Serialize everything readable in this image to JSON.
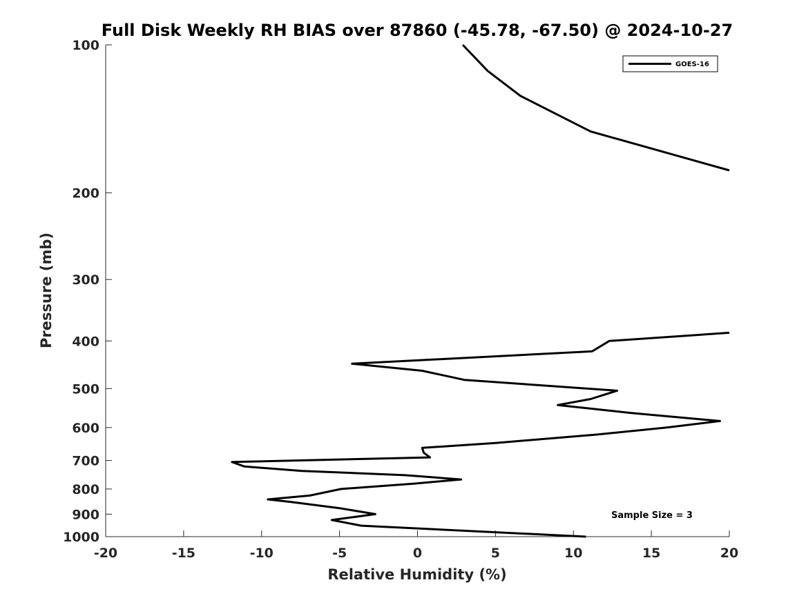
{
  "chart_data": {
    "type": "line",
    "title": "Full Disk Weekly RH BIAS over 87860 (-45.78, -67.50) @ 2024-10-27",
    "xlabel": "Relative Humidity (%)",
    "ylabel": "Pressure (mb)",
    "xlim": [
      -20,
      20
    ],
    "ylim": [
      100,
      1000
    ],
    "y_scale": "log",
    "y_reversed": true,
    "grid": false,
    "legend_position": "top-right",
    "x_ticks": [
      -20,
      -15,
      -10,
      -5,
      0,
      5,
      10,
      15,
      20
    ],
    "x_tick_labels": [
      "-20",
      "-15",
      "-10",
      "-5",
      "0",
      "5",
      "10",
      "15",
      "20"
    ],
    "y_ticks": [
      100,
      200,
      300,
      400,
      500,
      600,
      700,
      800,
      900,
      1000
    ],
    "y_tick_labels": [
      "100",
      "200",
      "300",
      "400",
      "500",
      "600",
      "700",
      "800",
      "900",
      "1000"
    ],
    "annotation": "Sample Size = 3",
    "series": [
      {
        "name": "GOES-16",
        "color": "#000000",
        "points": [
          [
            10.8,
            1000
          ],
          [
            -3.6,
            950
          ],
          [
            -5.5,
            925
          ],
          [
            -2.7,
            900
          ],
          [
            -5.0,
            875
          ],
          [
            -8.1,
            850
          ],
          [
            -9.6,
            840
          ],
          [
            -6.9,
            825
          ],
          [
            -4.9,
            800
          ],
          [
            -0.2,
            780
          ],
          [
            2.8,
            765
          ],
          [
            -0.8,
            750
          ],
          [
            -7.4,
            735
          ],
          [
            -11.1,
            720
          ],
          [
            -11.9,
            705
          ],
          [
            0.8,
            690
          ],
          [
            0.4,
            675
          ],
          [
            0.3,
            660
          ],
          [
            5.0,
            645
          ],
          [
            11.5,
            620
          ],
          [
            16.0,
            600
          ],
          [
            19.4,
            582
          ],
          [
            13.6,
            560
          ],
          [
            9.0,
            540
          ],
          [
            11.1,
            525
          ],
          [
            12.8,
            505
          ],
          [
            3.0,
            480
          ],
          [
            0.3,
            460
          ],
          [
            -4.2,
            445
          ],
          [
            11.2,
            420
          ],
          [
            12.3,
            400
          ],
          [
            20.0,
            385
          ]
        ]
      },
      {
        "name": "GOES-16",
        "color": "#000000",
        "points": [
          [
            20.0,
            180
          ],
          [
            11.1,
            150
          ],
          [
            6.6,
            127
          ],
          [
            4.5,
            113
          ],
          [
            2.9,
            100
          ]
        ]
      }
    ]
  }
}
